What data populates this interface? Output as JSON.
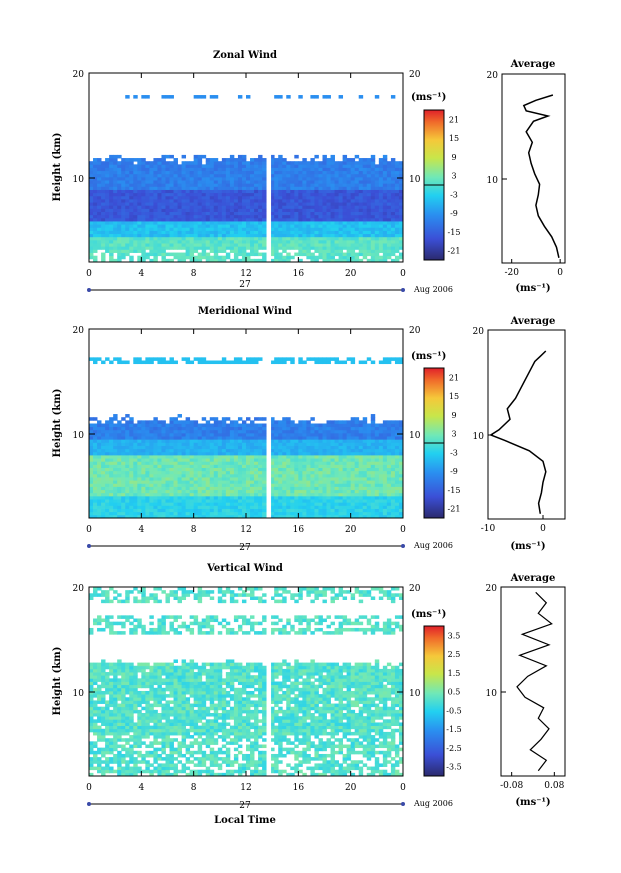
{
  "chart_data": [
    {
      "type": "heatmap",
      "name": "zonal",
      "title": "Zonal Wind",
      "xlabel": "",
      "ylabel": "Height (km)",
      "xticks": [
        "0",
        "4",
        "8",
        "12",
        "16",
        "20",
        "0"
      ],
      "xlim": [
        0,
        24
      ],
      "ylim": [
        2,
        20
      ],
      "yticks": [
        "20",
        "10"
      ],
      "date_day": "27",
      "date_label": "Aug 2006",
      "colorbar": {
        "unit": "(ms⁻¹)",
        "ticks": [
          "21",
          "15",
          "9",
          "3",
          "-3",
          "-9",
          "-15",
          "-21"
        ],
        "range": [
          -24,
          24
        ]
      },
      "data_gap_hour": 13.8,
      "profile": {
        "title": "Average",
        "xticks": [
          "-20",
          "0"
        ],
        "xlim": [
          -24,
          2
        ],
        "ylim": [
          2,
          20
        ],
        "yticks": [
          "20",
          "10"
        ],
        "xunit": "(ms⁻¹)",
        "heights": [
          2.5,
          3.5,
          4.5,
          5.5,
          6.5,
          7.5,
          8.5,
          9.5,
          10.5,
          11.5,
          12.5,
          13.5,
          14.5,
          15.5,
          16.0,
          16.5,
          17.0,
          17.5,
          18.0
        ],
        "values": [
          -0.5,
          -1.5,
          -3.5,
          -6.5,
          -9,
          -10,
          -9,
          -8.5,
          -10.5,
          -12,
          -13,
          -11.5,
          -14,
          -11,
          -5,
          -14,
          -15,
          -10,
          -3
        ]
      }
    },
    {
      "type": "heatmap",
      "name": "meridional",
      "title": "Meridional Wind",
      "xlabel": "",
      "ylabel": "Height (km)",
      "xticks": [
        "0",
        "4",
        "8",
        "12",
        "16",
        "20",
        "0"
      ],
      "xlim": [
        0,
        24
      ],
      "ylim": [
        2,
        20
      ],
      "yticks": [
        "20",
        "10"
      ],
      "date_day": "27",
      "date_label": "Aug 2006",
      "colorbar": {
        "unit": "(ms⁻¹)",
        "ticks": [
          "21",
          "15",
          "9",
          "3",
          "-3",
          "-9",
          "-15",
          "-21"
        ],
        "range": [
          -24,
          24
        ]
      },
      "data_gap_hour": 13.8,
      "profile": {
        "title": "Average",
        "xticks": [
          "-10",
          "0"
        ],
        "xlim": [
          -10,
          4
        ],
        "ylim": [
          2,
          20
        ],
        "yticks": [
          "20",
          "10"
        ],
        "xunit": "(ms⁻¹)",
        "heights": [
          2.5,
          3.5,
          4.5,
          5.5,
          6.5,
          7.5,
          8.5,
          9.5,
          10.0,
          10.5,
          11.5,
          12.5,
          13.5,
          14.5,
          15.5,
          16.5,
          17.0,
          17.5,
          18.0
        ],
        "values": [
          -0.5,
          -0.8,
          -0.3,
          0,
          0.5,
          0,
          -2.5,
          -7,
          -9.5,
          -8,
          -6,
          -6.5,
          -5,
          -4,
          -3,
          -2,
          -1.5,
          -0.5,
          0.5
        ]
      }
    },
    {
      "type": "heatmap",
      "name": "vertical",
      "title": "Vertical Wind",
      "xlabel": "Local Time",
      "ylabel": "Height (km)",
      "xticks": [
        "0",
        "4",
        "8",
        "12",
        "16",
        "20",
        "0"
      ],
      "xlim": [
        0,
        24
      ],
      "ylim": [
        2,
        20
      ],
      "yticks": [
        "20",
        "10"
      ],
      "date_day": "27",
      "date_label": "Aug 2006",
      "colorbar": {
        "unit": "(ms⁻¹)",
        "ticks": [
          "3.5",
          "2.5",
          "1.5",
          "0.5",
          "-0.5",
          "-1.5",
          "-2.5",
          "-3.5"
        ],
        "range": [
          -4,
          4
        ]
      },
      "data_gap_hour": 13.8,
      "profile": {
        "title": "Average",
        "xticks": [
          "-0.08",
          "0.08"
        ],
        "xlim": [
          -0.12,
          0.12
        ],
        "ylim": [
          2,
          20
        ],
        "yticks": [
          "20",
          "10"
        ],
        "xunit": "(ms⁻¹)",
        "heights": [
          2.5,
          3.5,
          4.5,
          5.5,
          6.5,
          7.5,
          8.5,
          9.5,
          10.5,
          11.5,
          12.5,
          13.5,
          14.5,
          15.5,
          16.5,
          17.5,
          18.5,
          19.5
        ],
        "values": [
          0.02,
          0.05,
          -0.01,
          0.03,
          0.06,
          0.02,
          0.04,
          -0.03,
          -0.06,
          -0.02,
          0.05,
          -0.05,
          0.06,
          -0.04,
          0.07,
          0.02,
          0.05,
          0.01
        ]
      }
    }
  ]
}
